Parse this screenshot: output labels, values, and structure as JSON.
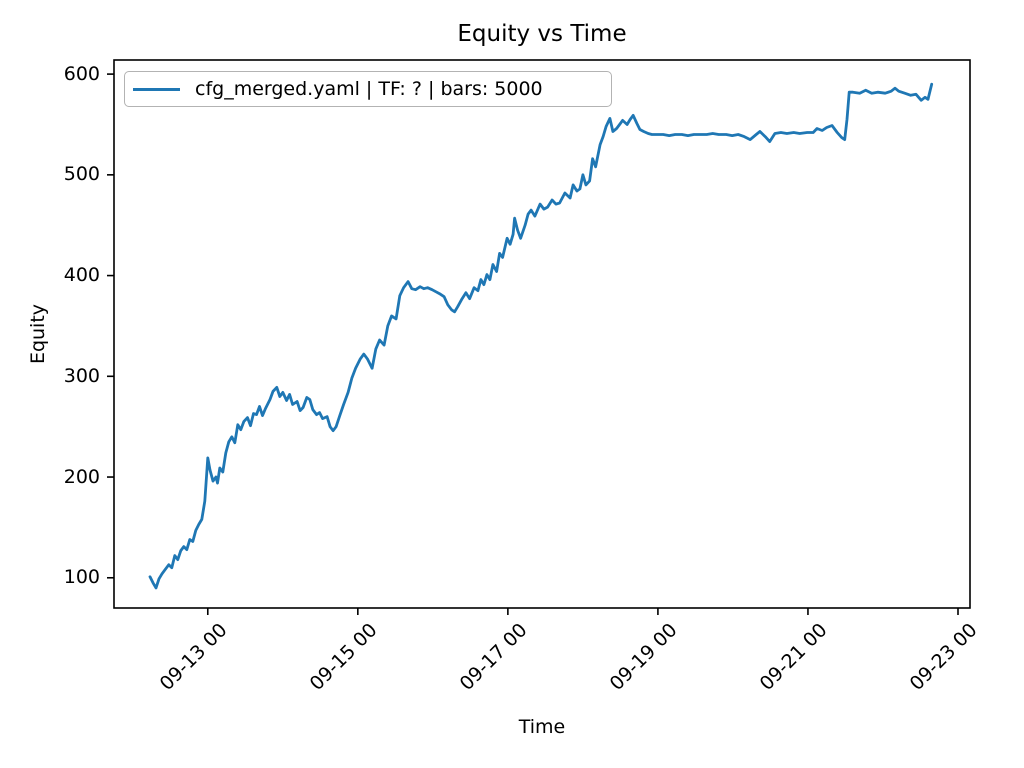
{
  "colors": {
    "line": "#1f77b4",
    "spine": "#000000",
    "legend_border": "#b3b3b3",
    "text": "#000000"
  },
  "chart_data": {
    "type": "line",
    "title": "Equity vs Time",
    "xlabel": "Time",
    "ylabel": "Equity",
    "x_unit": "day of September (decimal); 13.0 = tick 09-13 00",
    "xlim": [
      11.75,
      23.16
    ],
    "ylim": [
      70,
      614
    ],
    "grid": false,
    "legend_position": "upper left",
    "x_tick_rotation": 45,
    "xticks": [
      {
        "value": 13,
        "label": "09-13 00"
      },
      {
        "value": 15,
        "label": "09-15 00"
      },
      {
        "value": 17,
        "label": "09-17 00"
      },
      {
        "value": 19,
        "label": "09-19 00"
      },
      {
        "value": 21,
        "label": "09-21 00"
      },
      {
        "value": 23,
        "label": "09-23 00"
      }
    ],
    "yticks": [
      {
        "value": 100,
        "label": "100"
      },
      {
        "value": 200,
        "label": "200"
      },
      {
        "value": 300,
        "label": "300"
      },
      {
        "value": 400,
        "label": "400"
      },
      {
        "value": 500,
        "label": "500"
      },
      {
        "value": 600,
        "label": "600"
      }
    ],
    "series": [
      {
        "name": "cfg_merged.yaml | TF: ? | bars: 5000",
        "color": "#1f77b4",
        "x": [
          12.23,
          12.27,
          12.31,
          12.35,
          12.39,
          12.44,
          12.48,
          12.52,
          12.56,
          12.6,
          12.64,
          12.68,
          12.72,
          12.76,
          12.8,
          12.84,
          12.88,
          12.92,
          12.96,
          13.0,
          13.03,
          13.07,
          13.11,
          13.13,
          13.16,
          13.2,
          13.24,
          13.28,
          13.32,
          13.36,
          13.4,
          13.44,
          13.48,
          13.53,
          13.57,
          13.61,
          13.65,
          13.69,
          13.73,
          13.77,
          13.83,
          13.87,
          13.92,
          13.96,
          14.0,
          14.05,
          14.09,
          14.13,
          14.19,
          14.23,
          14.27,
          14.32,
          14.36,
          14.4,
          14.45,
          14.49,
          14.53,
          14.59,
          14.63,
          14.67,
          14.71,
          14.76,
          14.81,
          14.87,
          14.92,
          14.97,
          15.03,
          15.08,
          15.13,
          15.19,
          15.24,
          15.29,
          15.35,
          15.4,
          15.45,
          15.51,
          15.56,
          15.61,
          15.67,
          15.72,
          15.77,
          15.83,
          15.88,
          15.93,
          15.99,
          16.04,
          16.09,
          16.15,
          16.2,
          16.25,
          16.29,
          16.33,
          16.39,
          16.44,
          16.49,
          16.55,
          16.6,
          16.64,
          16.68,
          16.72,
          16.76,
          16.8,
          16.85,
          16.89,
          16.93,
          16.99,
          17.03,
          17.07,
          17.09,
          17.13,
          17.17,
          17.23,
          17.27,
          17.31,
          17.36,
          17.43,
          17.48,
          17.53,
          17.59,
          17.64,
          17.69,
          17.76,
          17.83,
          17.87,
          17.92,
          17.96,
          18.0,
          18.04,
          18.09,
          18.13,
          18.17,
          18.23,
          18.27,
          18.31,
          18.36,
          18.4,
          18.45,
          18.49,
          18.53,
          18.59,
          18.63,
          18.67,
          18.72,
          18.76,
          18.81,
          18.87,
          18.92,
          18.99,
          19.07,
          19.15,
          19.23,
          19.32,
          19.4,
          19.48,
          19.56,
          19.65,
          19.73,
          19.81,
          19.91,
          19.99,
          20.07,
          20.15,
          20.23,
          20.31,
          20.36,
          20.43,
          20.49,
          20.56,
          20.64,
          20.72,
          20.81,
          20.89,
          20.99,
          21.07,
          21.12,
          21.19,
          21.25,
          21.32,
          21.39,
          21.45,
          21.49,
          21.52,
          21.55,
          21.6,
          21.69,
          21.77,
          21.85,
          21.93,
          22.03,
          22.11,
          22.16,
          22.21,
          22.29,
          22.37,
          22.44,
          22.51,
          22.56,
          22.6,
          22.65
        ],
        "y": [
          101,
          95,
          90,
          99,
          104,
          109,
          113,
          110,
          122,
          118,
          127,
          131,
          128,
          138,
          136,
          147,
          153,
          158,
          176,
          219,
          207,
          196,
          200,
          194,
          209,
          205,
          224,
          235,
          240,
          234,
          252,
          247,
          255,
          259,
          251,
          263,
          262,
          270,
          261,
          268,
          277,
          285,
          289,
          280,
          284,
          276,
          282,
          272,
          275,
          266,
          269,
          279,
          277,
          267,
          262,
          264,
          258,
          260,
          250,
          246,
          250,
          261,
          272,
          284,
          298,
          308,
          317,
          322,
          317,
          308,
          327,
          336,
          331,
          350,
          360,
          357,
          380,
          388,
          394,
          387,
          386,
          389,
          387,
          388,
          386,
          384,
          382,
          379,
          371,
          366,
          364,
          369,
          377,
          383,
          377,
          388,
          385,
          396,
          391,
          401,
          396,
          411,
          404,
          422,
          418,
          437,
          431,
          441,
          457,
          445,
          437,
          450,
          461,
          465,
          459,
          471,
          466,
          468,
          475,
          471,
          472,
          482,
          477,
          490,
          484,
          486,
          500,
          490,
          494,
          516,
          508,
          530,
          538,
          548,
          556,
          543,
          546,
          550,
          554,
          550,
          555,
          559,
          551,
          545,
          543,
          541,
          540,
          540,
          540,
          539,
          540,
          540,
          539,
          540,
          540,
          540,
          541,
          540,
          540,
          539,
          540,
          538,
          535,
          540,
          543,
          538,
          533,
          541,
          542,
          541,
          542,
          541,
          542,
          542,
          546,
          544,
          547,
          549,
          542,
          537,
          535,
          555,
          582,
          582,
          581,
          584,
          581,
          582,
          581,
          583,
          586,
          583,
          581,
          579,
          580,
          574,
          577,
          575,
          590
        ]
      }
    ]
  }
}
